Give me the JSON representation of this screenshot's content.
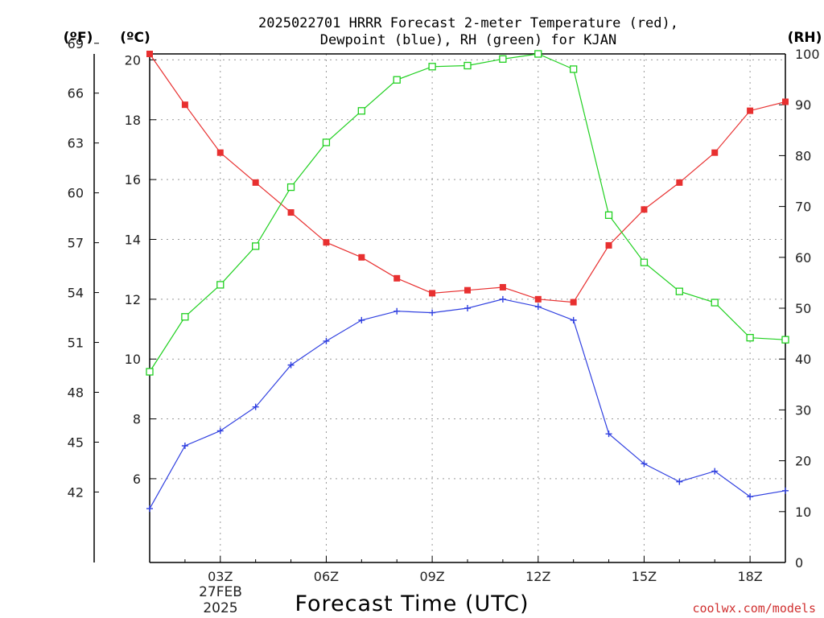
{
  "chart_data": {
    "type": "line",
    "title_line1": "2025022701 HRRR Forecast 2-meter Temperature (red),",
    "title_line2": "Dewpoint (blue), RH (green) for KJAN",
    "xlabel": "Forecast Time (UTC)",
    "units": {
      "fahrenheit": "(ºF)",
      "celsius": "(ºC)",
      "rh": "(RH)"
    },
    "date_label_line1": "27FEB",
    "date_label_line2": "2025",
    "credit": "coolwx.com/models",
    "x_hours": [
      1,
      2,
      3,
      4,
      5,
      6,
      7,
      8,
      9,
      10,
      11,
      12,
      13,
      14,
      15,
      16,
      17,
      18,
      19
    ],
    "xlim": [
      1,
      19
    ],
    "x_ticks": [
      {
        "hour": 3,
        "label": "03Z"
      },
      {
        "hour": 6,
        "label": "06Z"
      },
      {
        "hour": 9,
        "label": "09Z"
      },
      {
        "hour": 12,
        "label": "12Z"
      },
      {
        "hour": 15,
        "label": "15Z"
      },
      {
        "hour": 18,
        "label": "18Z"
      }
    ],
    "y_celsius_lim": [
      3.2,
      20.2
    ],
    "y_celsius_ticks": [
      6,
      8,
      10,
      12,
      14,
      16,
      18,
      20
    ],
    "y_fahrenheit_ticks": [
      42,
      45,
      48,
      51,
      54,
      57,
      60,
      63,
      66,
      69
    ],
    "y_rh_lim": [
      0,
      100
    ],
    "y_rh_ticks": [
      0,
      10,
      20,
      30,
      40,
      50,
      60,
      70,
      80,
      90,
      100
    ],
    "grid": true,
    "series": [
      {
        "name": "Temperature",
        "axis": "celsius",
        "color": "#e83030",
        "marker": "filled-square",
        "values": [
          20.2,
          18.5,
          16.9,
          15.9,
          14.9,
          13.9,
          13.4,
          12.7,
          12.2,
          12.3,
          12.4,
          12.0,
          11.9,
          13.8,
          15.0,
          15.9,
          16.9,
          18.3,
          18.6
        ]
      },
      {
        "name": "Dewpoint",
        "axis": "celsius",
        "color": "#3040e0",
        "marker": "plus",
        "values": [
          5.0,
          7.1,
          7.6,
          8.4,
          9.8,
          10.6,
          11.3,
          11.6,
          11.55,
          11.7,
          12.0,
          11.75,
          11.3,
          7.5,
          6.5,
          5.9,
          6.25,
          5.4,
          5.6
        ]
      },
      {
        "name": "RH",
        "axis": "rh",
        "color": "#20d020",
        "marker": "open-square",
        "values": [
          37.5,
          48.3,
          54.6,
          62.2,
          73.8,
          82.6,
          88.8,
          94.9,
          97.5,
          97.7,
          99.0,
          100,
          97.0,
          68.3,
          59.0,
          53.3,
          51.1,
          44.2,
          43.8
        ]
      }
    ]
  }
}
